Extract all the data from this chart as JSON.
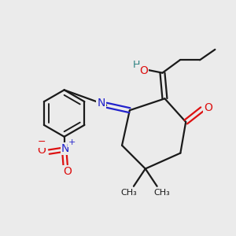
{
  "bg_color": "#ebebeb",
  "line_color": "#1a1a1a",
  "bond_width": 1.6,
  "atom_colors": {
    "O": "#dd1111",
    "N": "#2222cc",
    "H": "#2a8080",
    "C": "#1a1a1a"
  }
}
